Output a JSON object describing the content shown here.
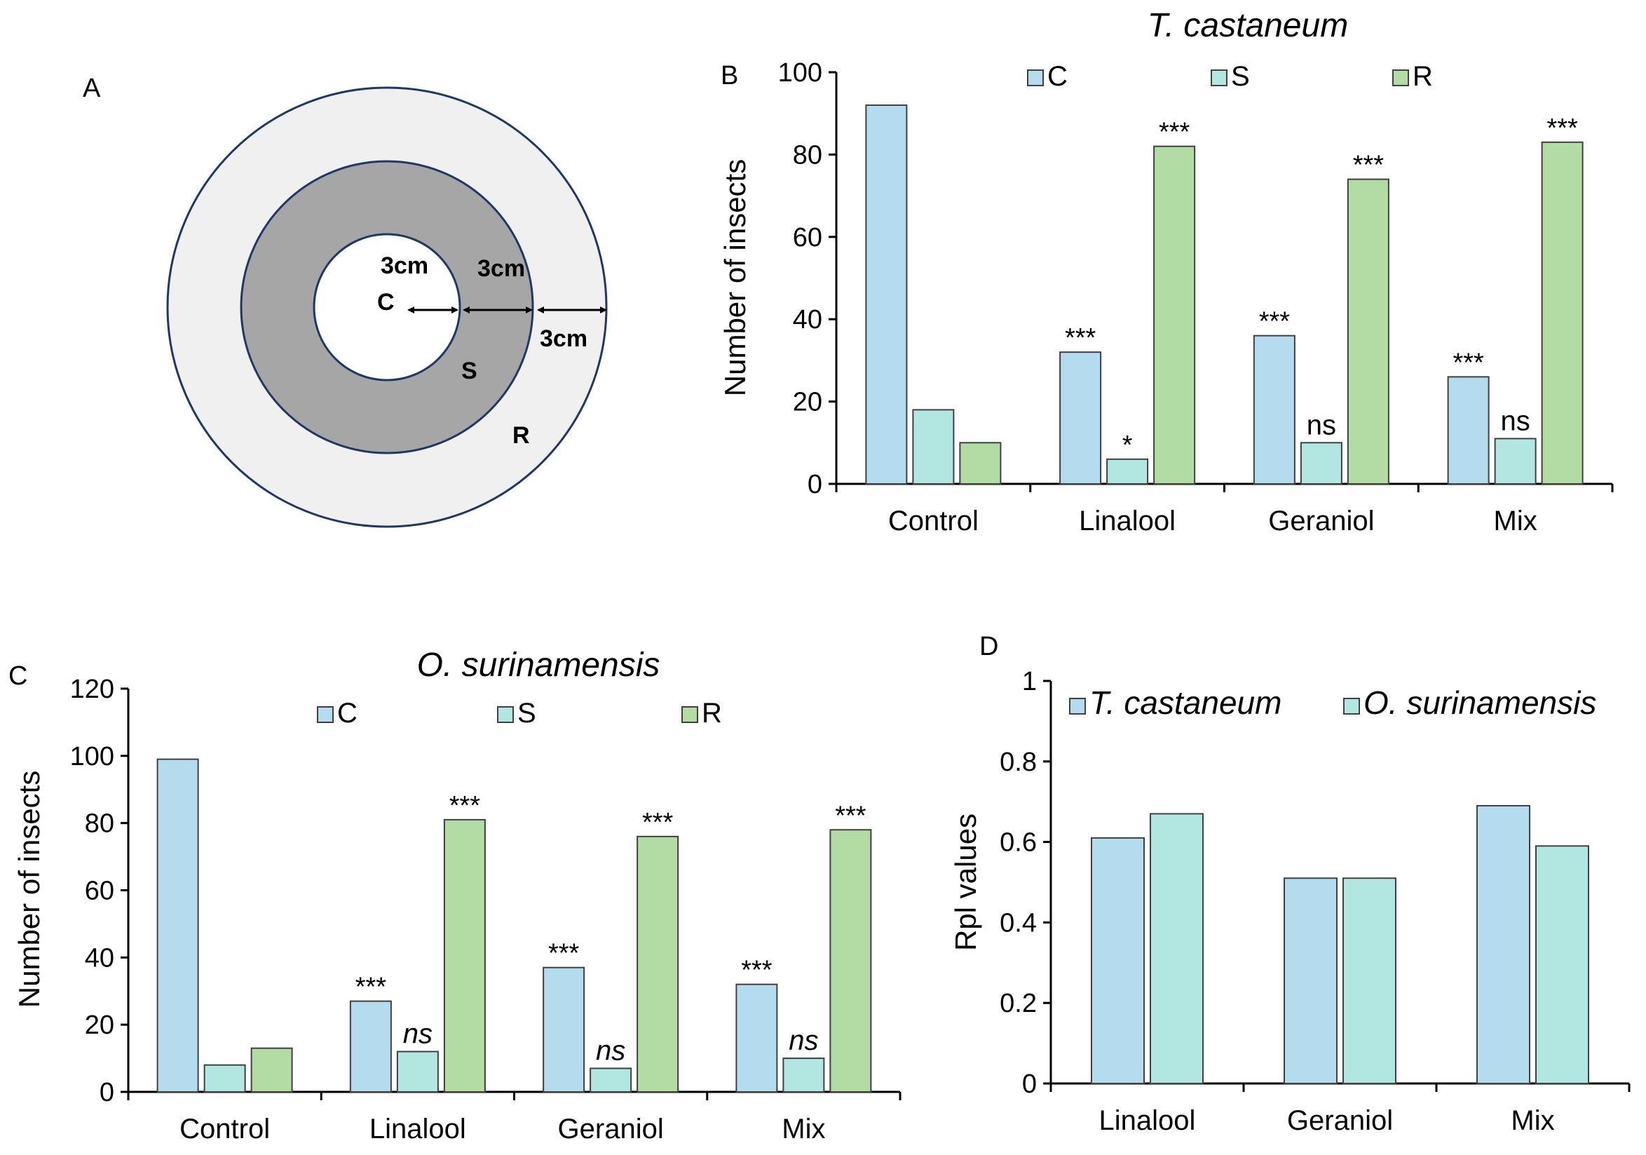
{
  "panel_labels": {
    "a": "A",
    "b": "B",
    "c": "C",
    "d": "D"
  },
  "diagram": {
    "zone_center": "C",
    "zone_middle": "S",
    "zone_outer": "R",
    "dim_inner": "3cm",
    "dim_middle": "3cm",
    "dim_outer": "3cm",
    "colors": {
      "outer": "#f0f0f0",
      "middle": "#a6a6a6",
      "inner": "#ffffff",
      "stroke": "#203864"
    }
  },
  "colors": {
    "C": "#b4dcee",
    "S": "#b2e7e1",
    "R": "#b3dba4",
    "axis": "#000000",
    "bar_stroke": "#404040"
  },
  "chart_data": [
    {
      "type": "bar",
      "title": "T. castaneum",
      "xlabel": "",
      "ylabel": "Number of insects",
      "ylim": [
        0,
        100
      ],
      "yticks": [
        0,
        20,
        40,
        60,
        80,
        100
      ],
      "categories": [
        "Control",
        "Linalool",
        "Geraniol",
        "Mix"
      ],
      "series": [
        {
          "name": "C",
          "values": [
            92,
            32,
            36,
            26
          ],
          "annotations": [
            "",
            "***",
            "***",
            "***"
          ]
        },
        {
          "name": "S",
          "values": [
            18,
            6,
            10,
            11
          ],
          "annotations": [
            "",
            "*",
            "ns",
            "ns"
          ]
        },
        {
          "name": "R",
          "values": [
            10,
            82,
            74,
            83
          ],
          "annotations": [
            "",
            "***",
            "***",
            "***"
          ]
        }
      ],
      "legend": "top"
    },
    {
      "type": "bar",
      "title": "O. surinamensis",
      "xlabel": "",
      "ylabel": "Number of insects",
      "ylim": [
        0,
        120
      ],
      "yticks": [
        0,
        20,
        40,
        60,
        80,
        100,
        120
      ],
      "categories": [
        "Control",
        "Linalool",
        "Geraniol",
        "Mix"
      ],
      "series": [
        {
          "name": "C",
          "values": [
            99,
            27,
            37,
            32
          ],
          "annotations": [
            "",
            "***",
            "***",
            "***"
          ]
        },
        {
          "name": "S",
          "values": [
            8,
            12,
            7,
            10
          ],
          "annotations": [
            "",
            "ns",
            "ns",
            "ns"
          ]
        },
        {
          "name": "R",
          "values": [
            13,
            81,
            76,
            78
          ],
          "annotations": [
            "",
            "***",
            "***",
            "***"
          ]
        }
      ],
      "legend": "top"
    },
    {
      "type": "bar",
      "title": "",
      "xlabel": "",
      "ylabel": "Rpl values",
      "ylim": [
        0,
        1
      ],
      "yticks": [
        0,
        0.2,
        0.4,
        0.6,
        0.8,
        1
      ],
      "ytick_labels": [
        "0",
        "0.2",
        "0.4",
        "0.6",
        "0.8",
        "1"
      ],
      "categories": [
        "Linalool",
        "Geraniol",
        "Mix"
      ],
      "series": [
        {
          "name": "T. castaneum",
          "values": [
            0.61,
            0.51,
            0.69
          ]
        },
        {
          "name": "O. surinamensis",
          "values": [
            0.67,
            0.51,
            0.59
          ]
        }
      ],
      "legend": "top"
    }
  ]
}
